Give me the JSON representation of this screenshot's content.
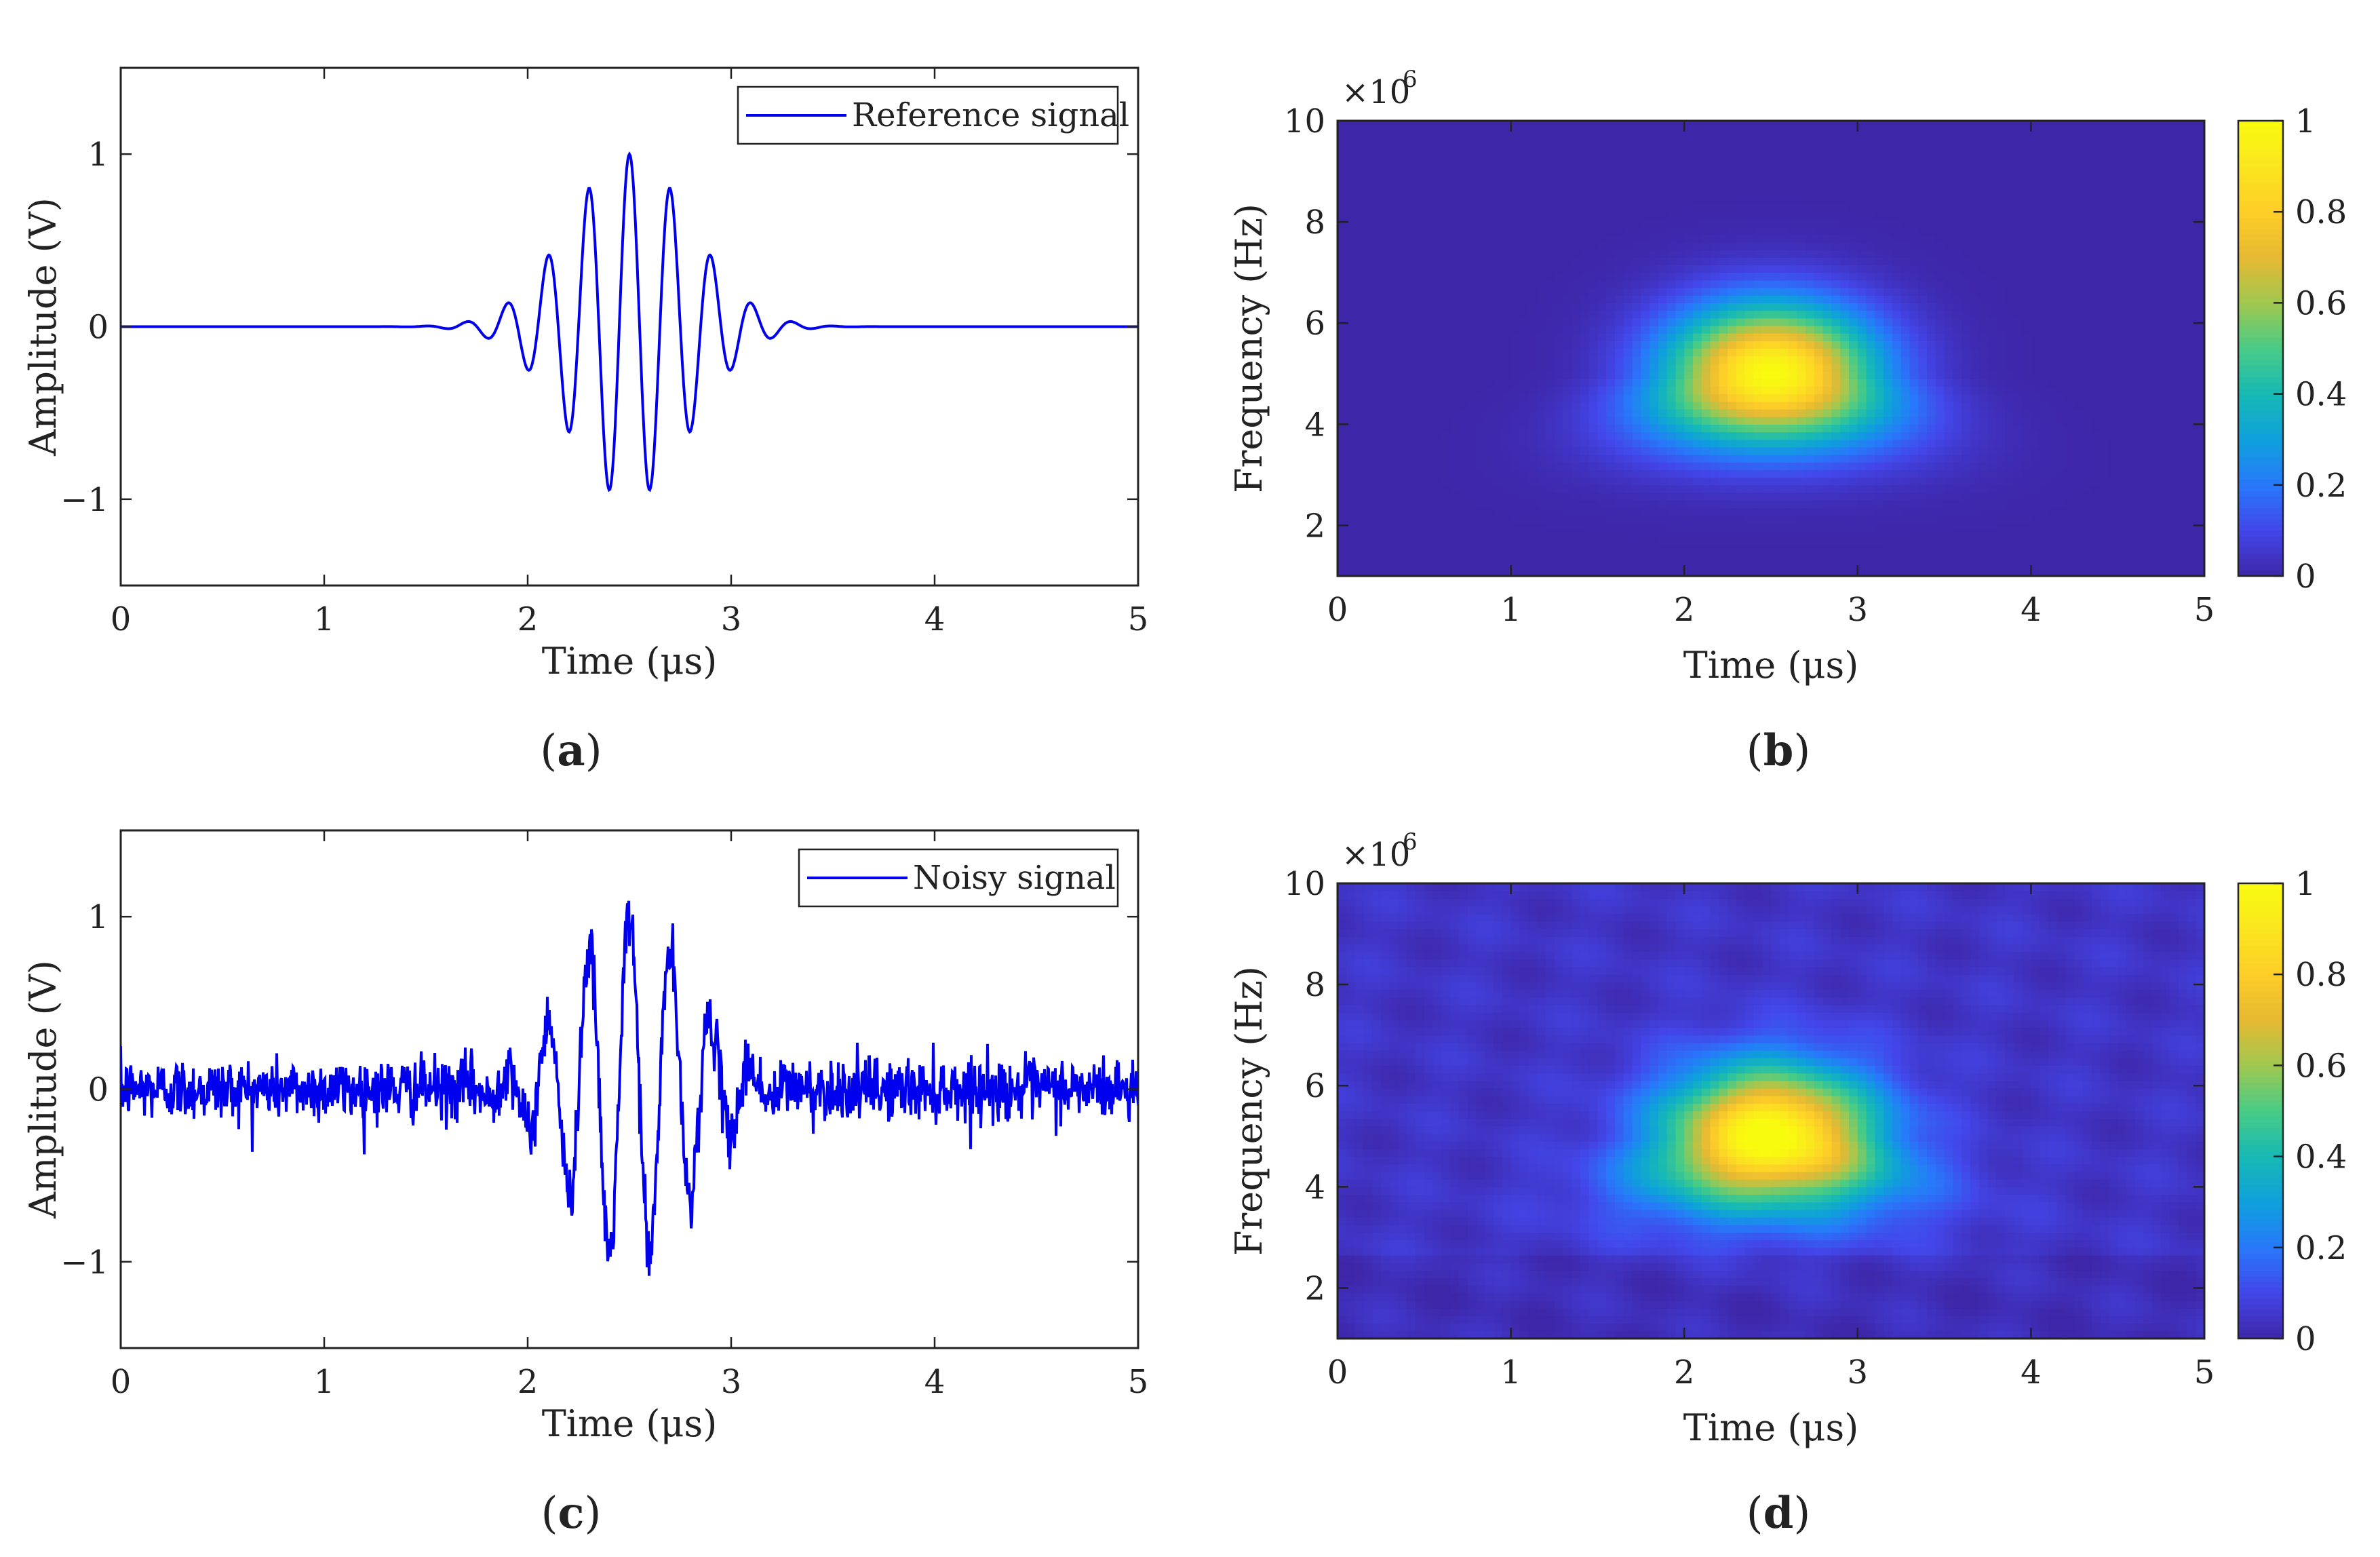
{
  "chart_data": [
    {
      "panel": "a",
      "type": "line",
      "caption_letter": "a",
      "xlabel": "Time (μs)",
      "ylabel": "Amplitude (V)",
      "xlim": [
        0,
        5
      ],
      "ylim": [
        -1.5,
        1.5
      ],
      "xticks": [
        "0",
        "1",
        "2",
        "3",
        "4",
        "5"
      ],
      "yticks": [
        "−1",
        "0",
        "1"
      ],
      "ytick_values": [
        -1,
        0,
        1
      ],
      "legend": "Reference signal",
      "series_color": "#0000ee",
      "signal": {
        "center_us": 2.5,
        "carrier_mhz": 5.0,
        "peak_v": 1.0,
        "sigma_us": 0.3,
        "noise_std_v": 0.0
      }
    },
    {
      "panel": "b",
      "type": "heatmap",
      "caption_letter": "b",
      "xlabel": "Time (μs)",
      "ylabel": "Frequency (Hz)",
      "exponent_label": "×10",
      "exponent_sup": "6",
      "xlim": [
        0,
        5
      ],
      "ylim": [
        1,
        10
      ],
      "xticks": [
        "0",
        "1",
        "2",
        "3",
        "4",
        "5"
      ],
      "yticks": [
        "2",
        "4",
        "6",
        "8",
        "10"
      ],
      "ytick_values": [
        2,
        4,
        6,
        8,
        10
      ],
      "colorbar_ticks": [
        "0",
        "0.2",
        "0.4",
        "0.6",
        "0.8",
        "1"
      ],
      "colorbar_range": [
        0,
        1
      ],
      "peak": {
        "time_us": 2.5,
        "freq_mhz": 5.0,
        "value": 1.0
      },
      "noise": false
    },
    {
      "panel": "c",
      "type": "line",
      "caption_letter": "c",
      "xlabel": "Time (μs)",
      "ylabel": "Amplitude (V)",
      "xlim": [
        0,
        5
      ],
      "ylim": [
        -1.5,
        1.5
      ],
      "xticks": [
        "0",
        "1",
        "2",
        "3",
        "4",
        "5"
      ],
      "yticks": [
        "−1",
        "0",
        "1"
      ],
      "ytick_values": [
        -1,
        0,
        1
      ],
      "legend": "Noisy signal",
      "series_color": "#0000ee",
      "signal": {
        "center_us": 2.5,
        "carrier_mhz": 5.0,
        "peak_v": 1.0,
        "sigma_us": 0.3,
        "noise_std_v": 0.09
      }
    },
    {
      "panel": "d",
      "type": "heatmap",
      "caption_letter": "d",
      "xlabel": "Time (μs)",
      "ylabel": "Frequency (Hz)",
      "exponent_label": "×10",
      "exponent_sup": "6",
      "xlim": [
        0,
        5
      ],
      "ylim": [
        1,
        10
      ],
      "xticks": [
        "0",
        "1",
        "2",
        "3",
        "4",
        "5"
      ],
      "yticks": [
        "2",
        "4",
        "6",
        "8",
        "10"
      ],
      "ytick_values": [
        2,
        4,
        6,
        8,
        10
      ],
      "colorbar_ticks": [
        "0",
        "0.2",
        "0.4",
        "0.6",
        "0.8",
        "1"
      ],
      "colorbar_range": [
        0,
        1
      ],
      "peak": {
        "time_us": 2.5,
        "freq_mhz": 5.0,
        "value": 1.0
      },
      "noise": true
    }
  ]
}
